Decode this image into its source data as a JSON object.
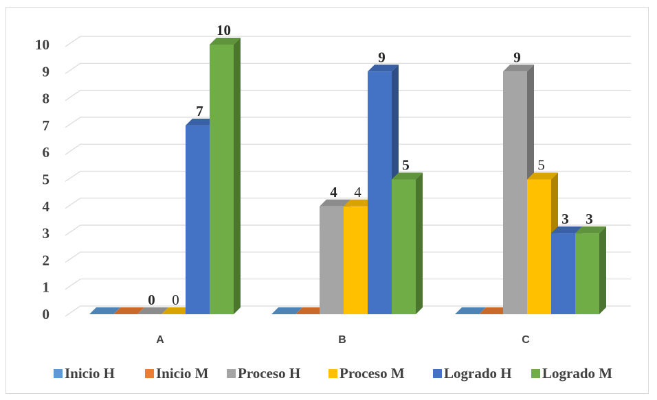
{
  "chart_data": {
    "type": "bar",
    "title": "",
    "xlabel": "",
    "ylabel": "",
    "ylim": [
      0,
      10
    ],
    "yticks": [
      "0",
      "1",
      "2",
      "3",
      "4",
      "5",
      "6",
      "7",
      "8",
      "9",
      "10"
    ],
    "grid": true,
    "legend_position": "bottom",
    "categories": [
      "A",
      "B",
      "C"
    ],
    "series": [
      {
        "name": "Inicio H",
        "color": "#5b9bd5",
        "values": [
          0,
          0,
          0
        ],
        "labels": [
          "",
          "",
          ""
        ],
        "label_bold": true
      },
      {
        "name": "Inicio M",
        "color": "#ed7d31",
        "values": [
          0,
          0,
          0
        ],
        "labels": [
          "",
          "",
          ""
        ],
        "label_bold": true
      },
      {
        "name": "Proceso H",
        "color": "#a5a5a5",
        "values": [
          0,
          4,
          9
        ],
        "labels": [
          "0",
          "4",
          "9"
        ],
        "label_bold": true
      },
      {
        "name": "Proceso M",
        "color": "#ffc000",
        "values": [
          0,
          4,
          5
        ],
        "labels": [
          "0",
          "4",
          "5"
        ],
        "label_bold": false
      },
      {
        "name": "Logrado H",
        "color": "#4472c4",
        "values": [
          7,
          9,
          3
        ],
        "labels": [
          "7",
          "9",
          "3"
        ],
        "label_bold": true
      },
      {
        "name": "Logrado M",
        "color": "#70ad47",
        "values": [
          10,
          5,
          3
        ],
        "labels": [
          "10",
          "5",
          "3"
        ],
        "label_bold": true
      }
    ]
  }
}
